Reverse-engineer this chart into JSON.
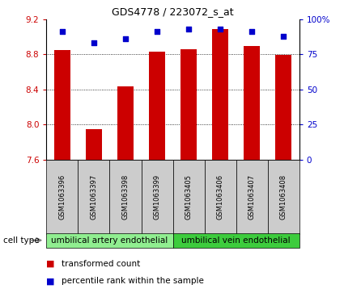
{
  "title": "GDS4778 / 223072_s_at",
  "samples": [
    "GSM1063396",
    "GSM1063397",
    "GSM1063398",
    "GSM1063399",
    "GSM1063405",
    "GSM1063406",
    "GSM1063407",
    "GSM1063408"
  ],
  "transformed_count": [
    8.85,
    7.95,
    8.43,
    8.83,
    8.86,
    9.09,
    8.89,
    8.79
  ],
  "percentile_rank": [
    91,
    83,
    86,
    91,
    93,
    93,
    91,
    88
  ],
  "ylim_left": [
    7.6,
    9.2
  ],
  "ylim_right": [
    0,
    100
  ],
  "yticks_left": [
    7.6,
    8.0,
    8.4,
    8.8,
    9.2
  ],
  "yticks_right": [
    0,
    25,
    50,
    75,
    100
  ],
  "bar_color": "#cc0000",
  "dot_color": "#0000cc",
  "group1_label": "umbilical artery endothelial",
  "group2_label": "umbilical vein endothelial",
  "group1_color": "#90ee90",
  "group2_color": "#3dcc3d",
  "cell_type_label": "cell type",
  "legend_bar_label": "transformed count",
  "legend_dot_label": "percentile rank within the sample",
  "sample_box_color": "#cccccc",
  "title_fontsize": 9,
  "tick_fontsize": 7.5,
  "sample_fontsize": 6,
  "group_fontsize": 7.5,
  "legend_fontsize": 7.5
}
